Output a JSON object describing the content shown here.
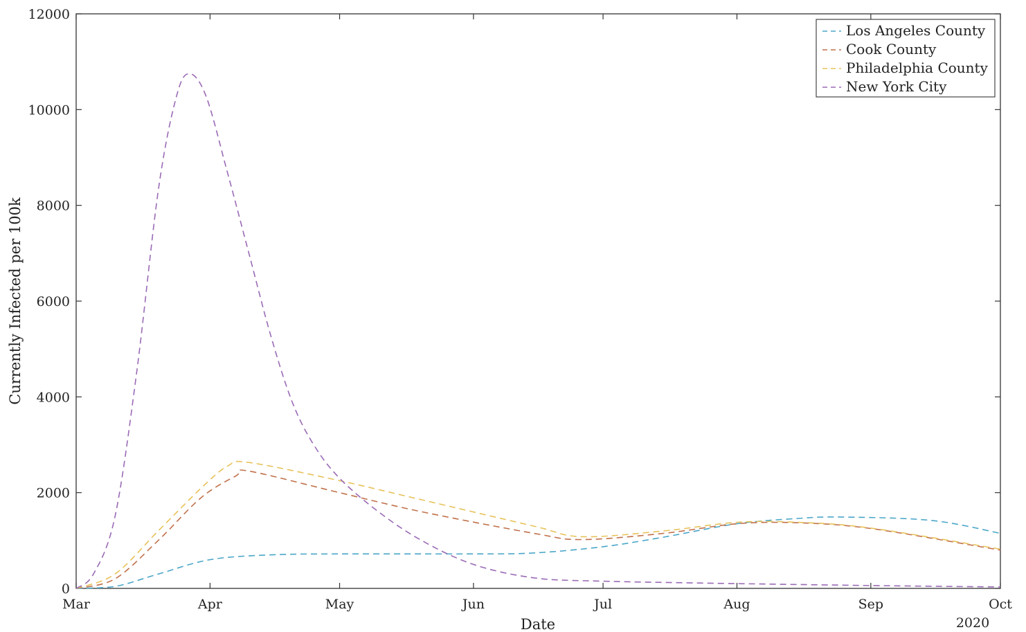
{
  "chart_data": {
    "type": "line",
    "title": "",
    "xlabel": "Date",
    "ylabel": "Currently Infected per 100k",
    "year_label": "2020",
    "x_ticks": [
      "Mar",
      "Apr",
      "May",
      "Jun",
      "Jul",
      "Aug",
      "Sep",
      "Oct"
    ],
    "y_ticks": [
      "0",
      "2000",
      "4000",
      "6000",
      "8000",
      "10000",
      "12000"
    ],
    "xlim": [
      "2020-03-01",
      "2020-10-01"
    ],
    "ylim": [
      0,
      12000
    ],
    "grid": false,
    "legend_position": "top-right",
    "line_style": "dashed",
    "series": [
      {
        "name": "Los Angeles County",
        "color": "#4aa6c8",
        "points": [
          [
            "2020-03-01",
            0
          ],
          [
            "2020-03-10",
            40
          ],
          [
            "2020-03-20",
            300
          ],
          [
            "2020-04-01",
            600
          ],
          [
            "2020-04-15",
            700
          ],
          [
            "2020-05-01",
            720
          ],
          [
            "2020-06-01",
            720
          ],
          [
            "2020-06-15",
            740
          ],
          [
            "2020-07-01",
            870
          ],
          [
            "2020-07-15",
            1070
          ],
          [
            "2020-08-01",
            1350
          ],
          [
            "2020-08-15",
            1460
          ],
          [
            "2020-08-25",
            1490
          ],
          [
            "2020-09-15",
            1420
          ],
          [
            "2020-10-01",
            1150
          ]
        ]
      },
      {
        "name": "Cook County",
        "color": "#c0704a",
        "points": [
          [
            "2020-03-01",
            0
          ],
          [
            "2020-03-10",
            200
          ],
          [
            "2020-03-20",
            1000
          ],
          [
            "2020-03-30",
            1900
          ],
          [
            "2020-04-07",
            2350
          ],
          [
            "2020-04-10",
            2450
          ],
          [
            "2020-05-01",
            2000
          ],
          [
            "2020-05-20",
            1600
          ],
          [
            "2020-06-15",
            1150
          ],
          [
            "2020-06-26",
            1020
          ],
          [
            "2020-07-15",
            1150
          ],
          [
            "2020-08-01",
            1350
          ],
          [
            "2020-08-15",
            1370
          ],
          [
            "2020-09-01",
            1250
          ],
          [
            "2020-10-01",
            800
          ]
        ]
      },
      {
        "name": "Philadelphia County",
        "color": "#e7c25a",
        "points": [
          [
            "2020-03-01",
            0
          ],
          [
            "2020-03-10",
            300
          ],
          [
            "2020-03-20",
            1200
          ],
          [
            "2020-03-30",
            2100
          ],
          [
            "2020-04-05",
            2550
          ],
          [
            "2020-04-10",
            2630
          ],
          [
            "2020-05-01",
            2250
          ],
          [
            "2020-05-20",
            1850
          ],
          [
            "2020-06-15",
            1300
          ],
          [
            "2020-06-26",
            1080
          ],
          [
            "2020-07-15",
            1200
          ],
          [
            "2020-08-01",
            1380
          ],
          [
            "2020-08-15",
            1380
          ],
          [
            "2020-09-01",
            1260
          ],
          [
            "2020-10-01",
            820
          ]
        ]
      },
      {
        "name": "New York City",
        "color": "#9a6ab5",
        "points": [
          [
            "2020-03-01",
            0
          ],
          [
            "2020-03-05",
            300
          ],
          [
            "2020-03-10",
            1500
          ],
          [
            "2020-03-15",
            4500
          ],
          [
            "2020-03-20",
            8300
          ],
          [
            "2020-03-24",
            10200
          ],
          [
            "2020-03-27",
            10750
          ],
          [
            "2020-03-31",
            10300
          ],
          [
            "2020-04-05",
            8700
          ],
          [
            "2020-04-10",
            7000
          ],
          [
            "2020-04-15",
            5300
          ],
          [
            "2020-04-20",
            3900
          ],
          [
            "2020-04-25",
            3000
          ],
          [
            "2020-05-01",
            2300
          ],
          [
            "2020-05-10",
            1600
          ],
          [
            "2020-05-20",
            1000
          ],
          [
            "2020-06-01",
            500
          ],
          [
            "2020-06-15",
            220
          ],
          [
            "2020-07-01",
            150
          ],
          [
            "2020-08-01",
            100
          ],
          [
            "2020-09-01",
            60
          ],
          [
            "2020-10-01",
            30
          ]
        ]
      }
    ]
  }
}
